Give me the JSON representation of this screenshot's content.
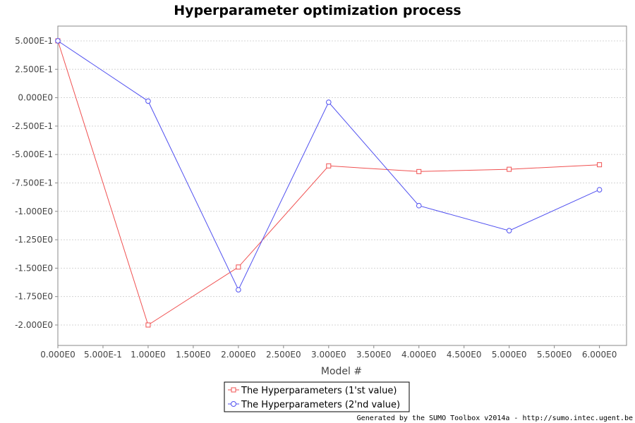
{
  "chart_data": {
    "type": "line",
    "title": "Hyperparameter optimization process",
    "xlabel": "Model #",
    "ylabel": "",
    "xlim": [
      0,
      6.3
    ],
    "ylim": [
      -2.18,
      0.63
    ],
    "grid": true,
    "legend_position": "bottom",
    "x_ticks": [
      {
        "value": 0.0,
        "label": "0.000E0"
      },
      {
        "value": 0.5,
        "label": "5.000E-1"
      },
      {
        "value": 1.0,
        "label": "1.000E0"
      },
      {
        "value": 1.5,
        "label": "1.500E0"
      },
      {
        "value": 2.0,
        "label": "2.000E0"
      },
      {
        "value": 2.5,
        "label": "2.500E0"
      },
      {
        "value": 3.0,
        "label": "3.000E0"
      },
      {
        "value": 3.5,
        "label": "3.500E0"
      },
      {
        "value": 4.0,
        "label": "4.000E0"
      },
      {
        "value": 4.5,
        "label": "4.500E0"
      },
      {
        "value": 5.0,
        "label": "5.000E0"
      },
      {
        "value": 5.5,
        "label": "5.500E0"
      },
      {
        "value": 6.0,
        "label": "6.000E0"
      }
    ],
    "y_ticks": [
      {
        "value": 0.5,
        "label": "5.000E-1"
      },
      {
        "value": 0.25,
        "label": "2.500E-1"
      },
      {
        "value": 0.0,
        "label": "0.000E0"
      },
      {
        "value": -0.25,
        "label": "-2.500E-1"
      },
      {
        "value": -0.5,
        "label": "-5.000E-1"
      },
      {
        "value": -0.75,
        "label": "-7.500E-1"
      },
      {
        "value": -1.0,
        "label": "-1.000E0"
      },
      {
        "value": -1.25,
        "label": "-1.250E0"
      },
      {
        "value": -1.5,
        "label": "-1.500E0"
      },
      {
        "value": -1.75,
        "label": "-1.750E0"
      },
      {
        "value": -2.0,
        "label": "-2.000E0"
      }
    ],
    "x": [
      0,
      1,
      2,
      3,
      4,
      5,
      6
    ],
    "series": [
      {
        "name": "The Hyperparameters (1'st value)",
        "color": "#f05050",
        "marker": "square",
        "values": [
          0.5,
          -2.0,
          -1.49,
          -0.6,
          -0.65,
          -0.63,
          -0.59
        ]
      },
      {
        "name": "The Hyperparameters (2'nd value)",
        "color": "#5050f0",
        "marker": "circle",
        "values": [
          0.5,
          -0.03,
          -1.69,
          -0.04,
          -0.95,
          -1.17,
          -0.81
        ]
      }
    ]
  },
  "footer": "Generated by the SUMO Toolbox v2014a - http://sumo.intec.ugent.be"
}
